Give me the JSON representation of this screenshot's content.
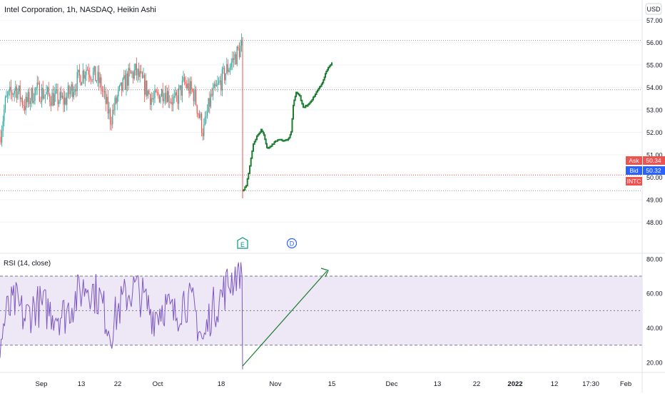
{
  "header": {
    "title": "Intel Corporation, 1h, NASDAQ, Heikin Ashi",
    "currency": "USD"
  },
  "price_axis": {
    "ticks": [
      "57.00",
      "56.00",
      "55.00",
      "54.00",
      "53.00",
      "52.00",
      "51.00",
      "50.00",
      "49.00",
      "48.00"
    ]
  },
  "price_tags": [
    {
      "label": "Ask",
      "value": "50.34",
      "color": "#ef5350"
    },
    {
      "label": "Bid",
      "value": "50.32",
      "color": "#2962ff"
    },
    {
      "label": "INTC",
      "value": "",
      "color": "#ef5350"
    }
  ],
  "event_markers": [
    {
      "symbol": "E",
      "color": "#089981"
    },
    {
      "symbol": "D",
      "color": "#2962ff"
    }
  ],
  "rsi_panel": {
    "title": "RSI (14, close)",
    "ticks": [
      "80.00",
      "60.00",
      "40.00",
      "20.00"
    ]
  },
  "time_axis": {
    "labels": [
      "Sep",
      "13",
      "22",
      "Oct",
      "18",
      "Nov",
      "15",
      "Dec",
      "13",
      "22",
      "2022",
      "12",
      "17:30",
      "Feb"
    ]
  },
  "colors": {
    "up": "#26a69a",
    "down": "#ef5350",
    "projection": "#1e7d32",
    "rsi_line": "#7e57c2",
    "rsi_band": "#ede7f6",
    "grid": "#f0f3fa"
  },
  "chart_data": {
    "type": "line",
    "series": [],
    "price_levels_marked": [
      56.1,
      53.9,
      50.1,
      49.4
    ],
    "projection_target": 55.1,
    "rsi_levels": [
      70,
      50,
      30
    ],
    "ylim_price": [
      47.5,
      57.2
    ],
    "ylim_rsi": [
      15,
      82
    ]
  }
}
